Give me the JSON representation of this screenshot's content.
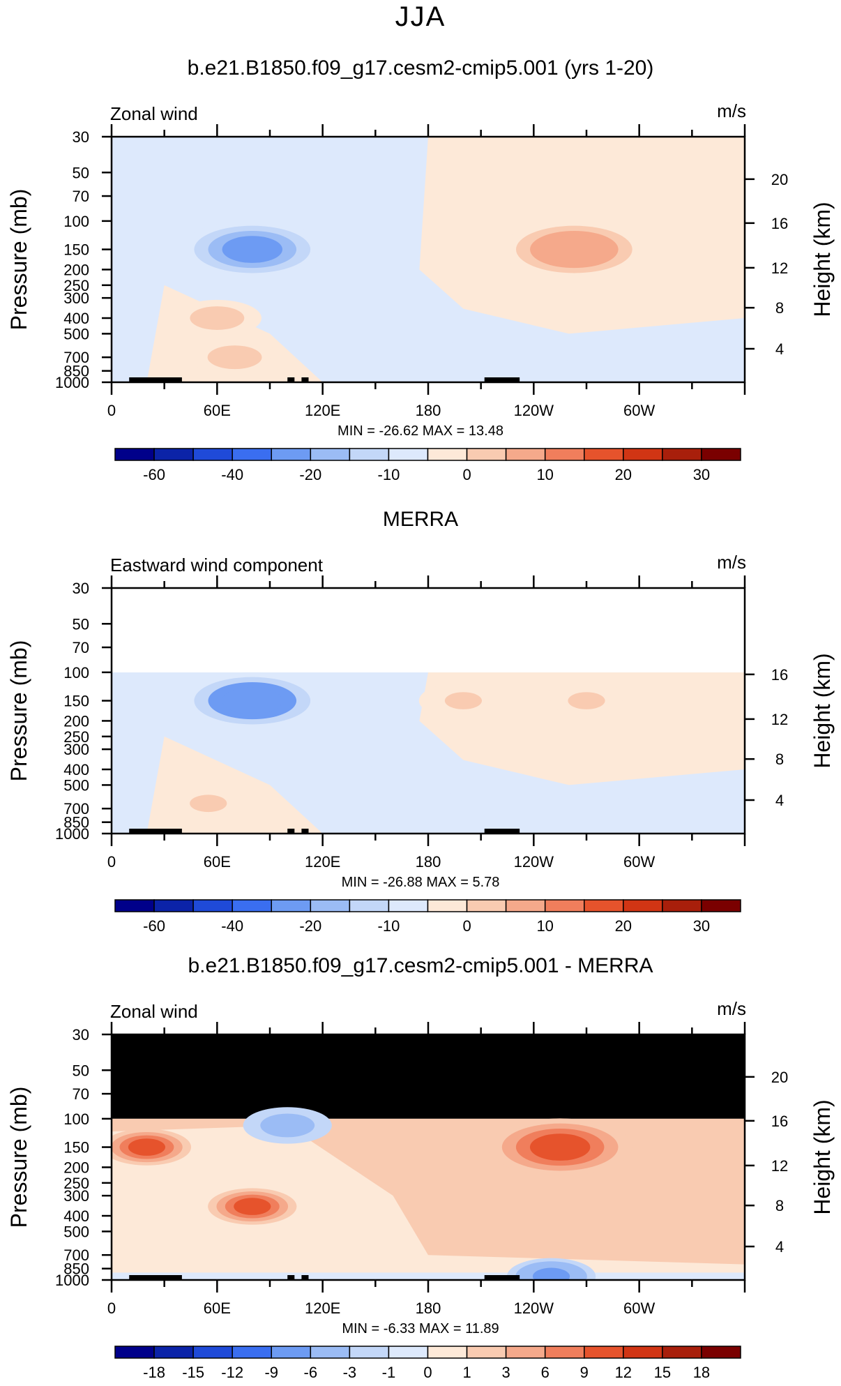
{
  "page_title": "JJA",
  "colors": {
    "main_scale": [
      "#00008a",
      "#0b23a8",
      "#1f4ad8",
      "#3a6ef0",
      "#6d9bf3",
      "#9bbcf5",
      "#c3d7f8",
      "#dde9fc",
      "#fde9d8",
      "#f9cbb1",
      "#f5a98b",
      "#f07e5c",
      "#e6532c",
      "#d13514",
      "#a81f0b",
      "#7a0000"
    ],
    "masked": "#000000"
  },
  "chart_data": [
    {
      "type": "heatmap",
      "title": "b.e21.B1850.f09_g17.cesm2-cmip5.001 (yrs 1-20)",
      "subtitle_left": "Zonal wind",
      "units": "m/s",
      "ylabel": "Pressure (mb)",
      "ylabel_right": "Height (km)",
      "x_ticks": [
        "0",
        "60E",
        "120E",
        "180",
        "120W",
        "60W"
      ],
      "y_ticks": [
        "30",
        "50",
        "70",
        "100",
        "150",
        "200",
        "250",
        "300",
        "400",
        "500",
        "700",
        "850",
        "1000"
      ],
      "y_ticks_right": [
        "20",
        "16",
        "12",
        "8",
        "4"
      ],
      "stats": {
        "min_label": "MIN =",
        "min": "-26.62",
        "max_label": "MAX =",
        "max": "13.48"
      },
      "colorbar_labels": [
        "-60",
        "-40",
        "-20",
        "-10",
        "0",
        "10",
        "20",
        "30"
      ],
      "ylim_mb": [
        1000,
        30
      ],
      "data_top_mb": 30,
      "masked_top": false,
      "features": [
        {
          "kind": "jet",
          "lon": 80,
          "p": 150,
          "value": -26.6
        },
        {
          "kind": "jet",
          "lon": 263,
          "p": 150,
          "value": 13.5
        },
        {
          "kind": "jet",
          "lon": 60,
          "p": 400,
          "value": 7
        },
        {
          "kind": "jet",
          "lon": 70,
          "p": 700,
          "value": 8
        }
      ]
    },
    {
      "type": "heatmap",
      "title": "MERRA",
      "subtitle_left": "Eastward wind component",
      "units": "m/s",
      "ylabel": "Pressure (mb)",
      "ylabel_right": "Height (km)",
      "x_ticks": [
        "0",
        "60E",
        "120E",
        "180",
        "120W",
        "60W"
      ],
      "y_ticks": [
        "30",
        "50",
        "70",
        "100",
        "150",
        "200",
        "250",
        "300",
        "400",
        "500",
        "700",
        "850",
        "1000"
      ],
      "y_ticks_right": [
        "16",
        "12",
        "8",
        "4"
      ],
      "stats": {
        "min_label": "MIN =",
        "min": "-26.88",
        "max_label": "MAX =",
        "max": "5.78"
      },
      "colorbar_labels": [
        "-60",
        "-40",
        "-20",
        "-10",
        "0",
        "10",
        "20",
        "30"
      ],
      "ylim_mb": [
        1000,
        30
      ],
      "data_top_mb": 100,
      "masked_top": false,
      "features": [
        {
          "kind": "jet",
          "lon": 80,
          "p": 150,
          "value": -26.9
        },
        {
          "kind": "jet",
          "lon": 200,
          "p": 150,
          "value": 5.8
        },
        {
          "kind": "jet",
          "lon": 270,
          "p": 150,
          "value": 5
        },
        {
          "kind": "jet",
          "lon": 55,
          "p": 650,
          "value": 5
        }
      ]
    },
    {
      "type": "heatmap",
      "title": "b.e21.B1850.f09_g17.cesm2-cmip5.001 - MERRA",
      "subtitle_left": "Zonal wind",
      "units": "m/s",
      "ylabel": "Pressure (mb)",
      "ylabel_right": "Height (km)",
      "x_ticks": [
        "0",
        "60E",
        "120E",
        "180",
        "120W",
        "60W"
      ],
      "y_ticks": [
        "30",
        "50",
        "70",
        "100",
        "150",
        "200",
        "250",
        "300",
        "400",
        "500",
        "700",
        "850",
        "1000"
      ],
      "y_ticks_right": [
        "20",
        "16",
        "12",
        "8",
        "4"
      ],
      "stats": {
        "min_label": "MIN =",
        "min": "-6.33",
        "max_label": "MAX =",
        "max": "11.89"
      },
      "colorbar_labels": [
        "-18",
        "-15",
        "-12",
        "-9",
        "-6",
        "-3",
        "-1",
        "0",
        "1",
        "3",
        "6",
        "9",
        "12",
        "15",
        "18"
      ],
      "ylim_mb": [
        1000,
        30
      ],
      "data_top_mb": 100,
      "masked_top": true,
      "features": [
        {
          "kind": "jet",
          "lon": 20,
          "p": 150,
          "value": 9
        },
        {
          "kind": "jet",
          "lon": 255,
          "p": 150,
          "value": 11.9
        },
        {
          "kind": "jet",
          "lon": 80,
          "p": 350,
          "value": 10
        },
        {
          "kind": "jet",
          "lon": 100,
          "p": 110,
          "value": -5
        },
        {
          "kind": "jet",
          "lon": 250,
          "p": 950,
          "value": -6.3
        }
      ]
    }
  ]
}
